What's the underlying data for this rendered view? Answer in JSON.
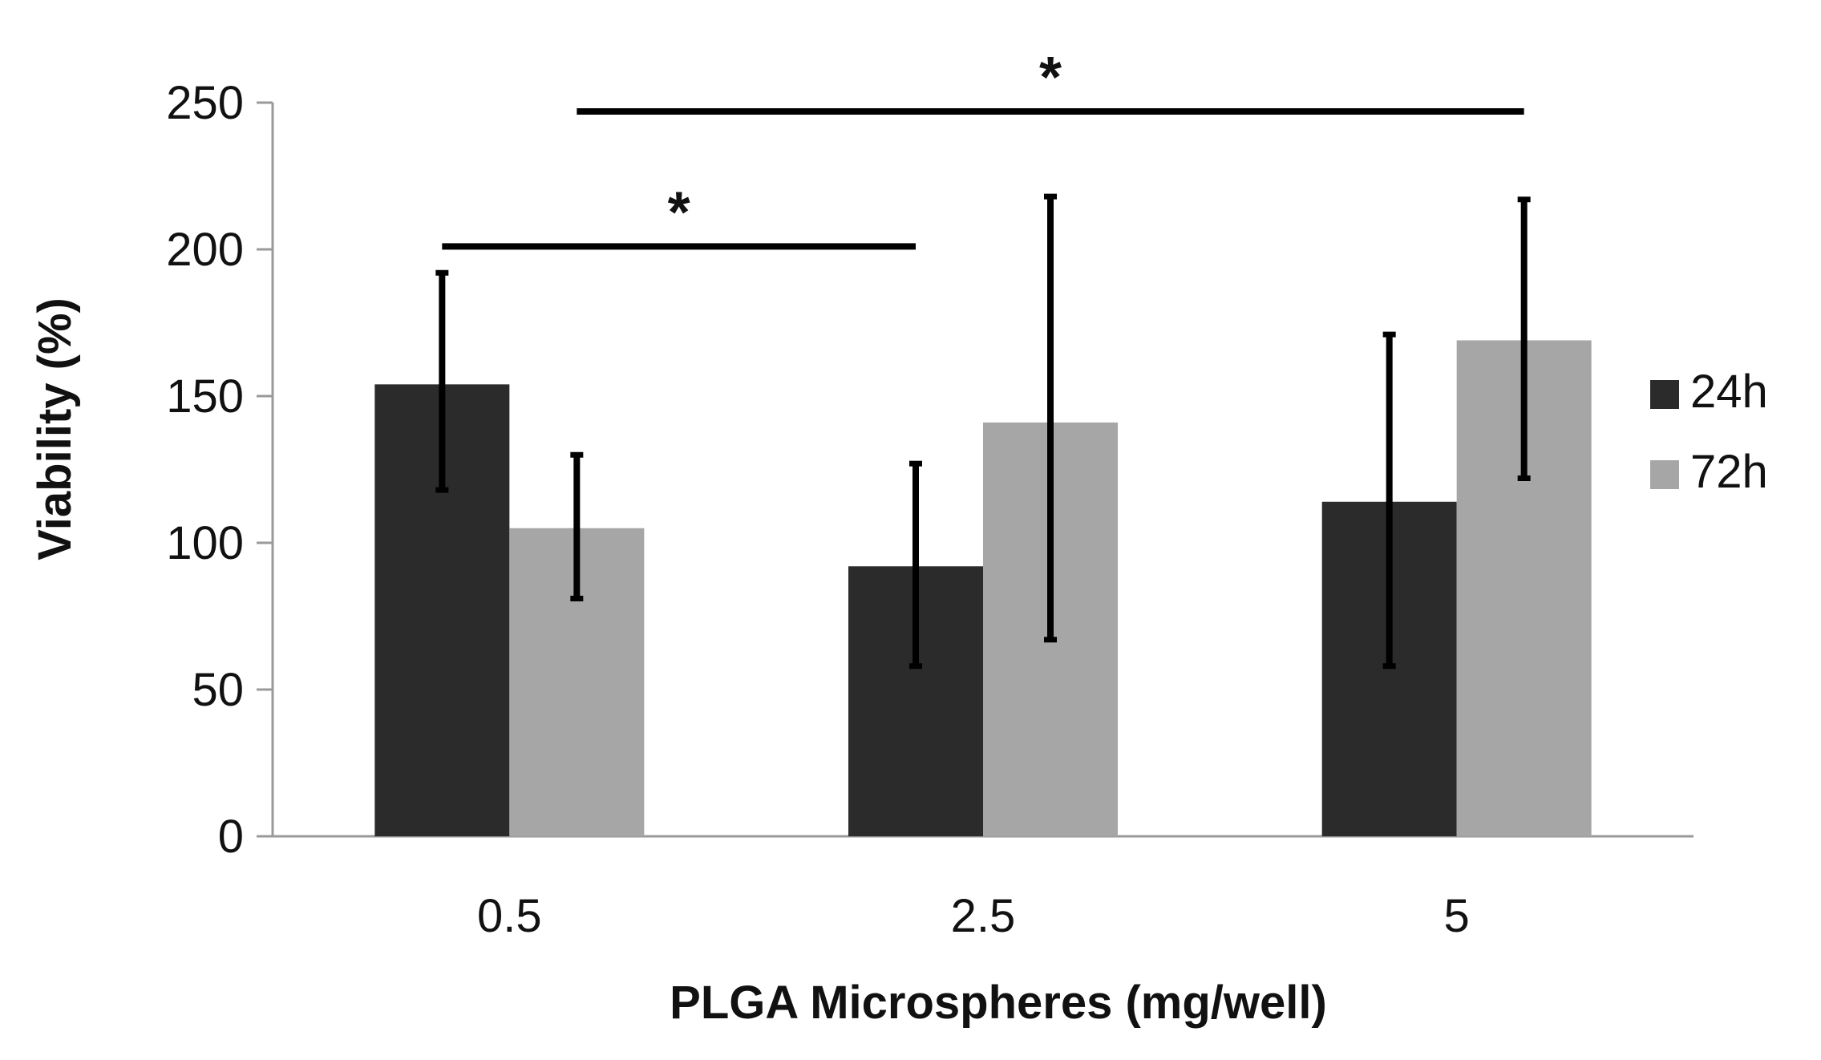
{
  "chart_data": {
    "type": "bar",
    "title": "",
    "xlabel": "PLGA Microspheres (mg/well)",
    "ylabel": "Viability (%)",
    "categories": [
      "0.5",
      "2.5",
      "5"
    ],
    "ylim": [
      0,
      250
    ],
    "yticks": [
      0,
      50,
      100,
      150,
      200,
      250
    ],
    "grid": false,
    "legend_position": "right",
    "series": [
      {
        "name": "24h",
        "color": "#2b2b2b",
        "values": [
          154,
          92,
          114
        ],
        "error_low": [
          118,
          58,
          58
        ],
        "error_high": [
          192,
          127,
          171
        ]
      },
      {
        "name": "72h",
        "color": "#a6a6a6",
        "values": [
          105,
          141,
          169
        ],
        "error_low": [
          81,
          67,
          122
        ],
        "error_high": [
          130,
          218,
          217
        ]
      }
    ],
    "annotations": [
      {
        "text": "*",
        "from_category": "0.5",
        "from_series": "24h",
        "to_category": "2.5",
        "to_series": "24h",
        "level": 201
      },
      {
        "text": "*",
        "from_category": "0.5",
        "from_series": "72h",
        "to_category": "5",
        "to_series": "72h",
        "level": 247
      }
    ]
  }
}
